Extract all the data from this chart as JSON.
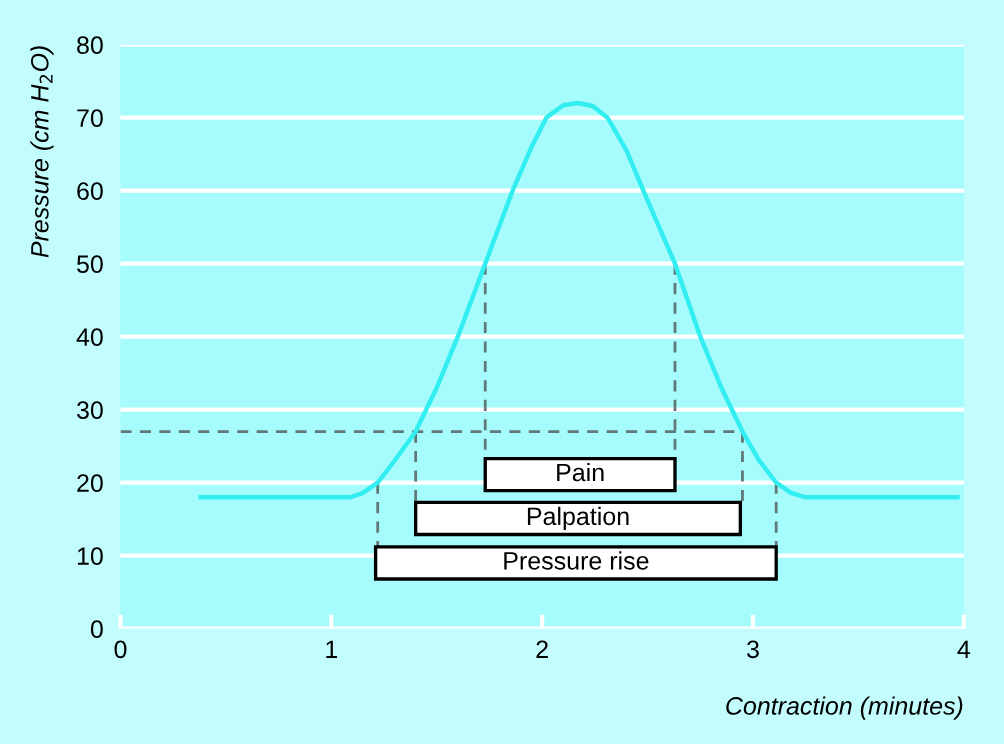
{
  "chart_data": {
    "type": "line",
    "xlabel": "Contraction (minutes)",
    "ylabel": "Pressure (cm H$_{2}$O)",
    "xlim": [
      0,
      4
    ],
    "ylim": [
      0,
      80
    ],
    "xticks": [
      0,
      1,
      2,
      3,
      4
    ],
    "yticks": [
      0,
      10,
      20,
      30,
      40,
      50,
      60,
      70,
      80
    ],
    "grid": "y",
    "series": [
      {
        "color": "#33eef0",
        "line_style": "solid",
        "x": [
          0.38,
          1.09,
          1.15,
          1.22,
          1.3,
          1.4,
          1.5,
          1.6,
          1.73,
          1.86,
          1.95,
          2.02,
          2.1,
          2.17,
          2.24,
          2.31,
          2.4,
          2.48,
          2.63,
          2.75,
          2.85,
          2.95,
          3.03,
          3.11,
          3.18,
          3.25,
          3.97
        ],
        "values": [
          18,
          18,
          18.6,
          20,
          23,
          27,
          33,
          40,
          50,
          60,
          66,
          70,
          71.7,
          72,
          71.6,
          70,
          65.5,
          60,
          50,
          40,
          33,
          27,
          23,
          20,
          18.6,
          18,
          18
        ]
      },
      {
        "color": "#607878",
        "line_style": "dashed",
        "x": [
          0,
          2.95
        ],
        "values": [
          27,
          27
        ]
      },
      {
        "color": "#607878",
        "line_style": "dashed",
        "x": [
          1.22,
          1.22
        ],
        "values": [
          20,
          11.2
        ]
      },
      {
        "color": "#607878",
        "line_style": "dashed",
        "x": [
          1.4,
          1.4
        ],
        "values": [
          27,
          17.3
        ]
      },
      {
        "color": "#607878",
        "line_style": "dashed",
        "x": [
          1.73,
          1.73
        ],
        "values": [
          50,
          23.3
        ]
      },
      {
        "color": "#607878",
        "line_style": "dashed",
        "x": [
          2.63,
          2.63
        ],
        "values": [
          50,
          23.3
        ]
      },
      {
        "color": "#607878",
        "line_style": "dashed",
        "x": [
          2.95,
          2.95
        ],
        "values": [
          27,
          17.3
        ]
      },
      {
        "color": "#607878",
        "line_style": "dashed",
        "x": [
          3.11,
          3.11
        ],
        "values": [
          20,
          11.2
        ]
      },
      {
        "type": "area",
        "name": "Pain",
        "color": "#ffffff",
        "x": [
          1.73,
          2.63,
          2.63,
          1.73
        ],
        "values": [
          18.9,
          18.9,
          23.3,
          23.3
        ]
      },
      {
        "type": "area",
        "name": "Palpation",
        "color": "#ffffff",
        "x": [
          1.4,
          2.94,
          2.94,
          1.4
        ],
        "values": [
          12.9,
          12.9,
          17.3,
          17.3
        ]
      },
      {
        "type": "area",
        "name": "Pressure rise",
        "color": "#ffffff",
        "x": [
          1.21,
          3.11,
          3.11,
          1.21
        ],
        "values": [
          6.8,
          6.8,
          11.2,
          11.2
        ]
      }
    ]
  }
}
